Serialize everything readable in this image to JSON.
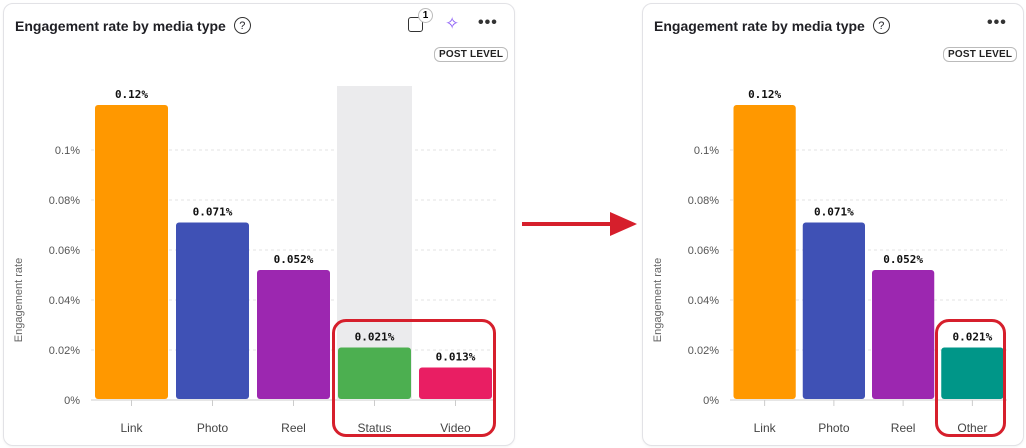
{
  "left_panel": {
    "title": "Engagement rate by media type",
    "help_icon": "?",
    "badge": "POST LEVEL",
    "filter_count": "1",
    "icons": [
      "help-icon",
      "filter-icon",
      "ai-sparkle-icon",
      "more-icon"
    ],
    "more": "•••"
  },
  "right_panel": {
    "title": "Engagement rate by media type",
    "help_icon": "?",
    "badge": "POST LEVEL",
    "more": "•••"
  },
  "chart_data": [
    {
      "type": "bar",
      "ylabel": "Engagement rate",
      "ylim": [
        0,
        0.126
      ],
      "yticks": [
        0,
        0.02,
        0.04,
        0.06,
        0.08,
        0.1
      ],
      "ytick_labels": [
        "0%",
        "0.02%",
        "0.04%",
        "0.06%",
        "0.08%",
        "0.1%"
      ],
      "grid": true,
      "categories": [
        "Link",
        "Photo",
        "Reel",
        "Status",
        "Video"
      ],
      "values": [
        0.118,
        0.071,
        0.052,
        0.021,
        0.013
      ],
      "data_labels": [
        "0.12%",
        "0.071%",
        "0.052%",
        "0.021%",
        "0.013%"
      ],
      "colors": [
        "#ff9800",
        "#3f51b5",
        "#9c27b0",
        "#4caf50",
        "#e91e63"
      ],
      "hovered_category": "Status",
      "highlighted": [
        "Status",
        "Video"
      ]
    },
    {
      "type": "bar",
      "ylabel": "Engagement rate",
      "ylim": [
        0,
        0.126
      ],
      "yticks": [
        0,
        0.02,
        0.04,
        0.06,
        0.08,
        0.1
      ],
      "ytick_labels": [
        "0%",
        "0.02%",
        "0.04%",
        "0.06%",
        "0.08%",
        "0.1%"
      ],
      "grid": true,
      "categories": [
        "Link",
        "Photo",
        "Reel",
        "Other"
      ],
      "values": [
        0.118,
        0.071,
        0.052,
        0.021
      ],
      "data_labels": [
        "0.12%",
        "0.071%",
        "0.052%",
        "0.021%"
      ],
      "colors": [
        "#ff9800",
        "#3f51b5",
        "#9c27b0",
        "#009688"
      ],
      "highlighted": [
        "Other"
      ]
    }
  ],
  "arrow_color": "#d61f2c"
}
